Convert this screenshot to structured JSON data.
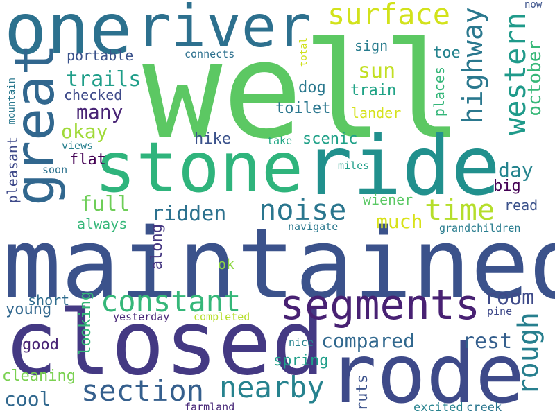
{
  "colors": {
    "background": "#ffffff",
    "palette": [
      "#440154",
      "#482878",
      "#3e4989",
      "#31688e",
      "#26828e",
      "#1f9e89",
      "#35b779",
      "#6ece58",
      "#b5de2b",
      "#fde725"
    ]
  },
  "words": [
    {
      "text": "well",
      "color": "#5cc863"
    },
    {
      "text": "stone",
      "color": "#2fb47c"
    },
    {
      "text": "ride",
      "color": "#21908d"
    },
    {
      "text": "maintained",
      "color": "#3b528b"
    },
    {
      "text": "closed",
      "color": "#443983"
    },
    {
      "text": "rode",
      "color": "#3e4a89"
    },
    {
      "text": "one",
      "color": "#2c718e"
    },
    {
      "text": "river",
      "color": "#2d708e"
    },
    {
      "text": "great",
      "color": "#31678e"
    },
    {
      "text": "segments",
      "color": "#482173"
    },
    {
      "text": "surface",
      "color": "#d2e21b"
    },
    {
      "text": "highway",
      "color": "#2a788e"
    },
    {
      "text": "western",
      "color": "#1f9a8a"
    },
    {
      "text": "october",
      "color": "#37b878"
    },
    {
      "text": "noise",
      "color": "#2a768e"
    },
    {
      "text": "time",
      "color": "#b5de2b"
    },
    {
      "text": "constant",
      "color": "#35b779"
    },
    {
      "text": "section",
      "color": "#355f8d"
    },
    {
      "text": "nearby",
      "color": "#26828e"
    },
    {
      "text": "rough",
      "color": "#277f8e"
    },
    {
      "text": "room",
      "color": "#3e4a89"
    },
    {
      "text": "rest",
      "color": "#355f8d"
    },
    {
      "text": "compared",
      "color": "#31688e"
    },
    {
      "text": "many",
      "color": "#482475"
    },
    {
      "text": "trails",
      "color": "#1f9e89"
    },
    {
      "text": "okay",
      "color": "#a0da39"
    },
    {
      "text": "sun",
      "color": "#c2df23"
    },
    {
      "text": "full",
      "color": "#6ece58"
    },
    {
      "text": "ridden",
      "color": "#2c718e"
    },
    {
      "text": "much",
      "color": "#d8e219"
    },
    {
      "text": "day",
      "color": "#25848e"
    },
    {
      "text": "sign",
      "color": "#287c8e"
    },
    {
      "text": "toe",
      "color": "#25838e"
    },
    {
      "text": "train",
      "color": "#20a386"
    },
    {
      "text": "dog",
      "color": "#2a788e"
    },
    {
      "text": "toilet",
      "color": "#2a768e"
    },
    {
      "text": "lander",
      "color": "#d5e21a"
    },
    {
      "text": "places",
      "color": "#34b679"
    },
    {
      "text": "portable",
      "color": "#3b528b"
    },
    {
      "text": "checked",
      "color": "#3e4a89"
    },
    {
      "text": "connects",
      "color": "#2d708e"
    },
    {
      "text": "total",
      "color": "#d0e11c"
    },
    {
      "text": "now",
      "color": "#3b528b"
    },
    {
      "text": "mountain",
      "color": "#2a788e"
    },
    {
      "text": "pleasant",
      "color": "#3e4989"
    },
    {
      "text": "hike",
      "color": "#3b528b"
    },
    {
      "text": "scenic",
      "color": "#1fa188"
    },
    {
      "text": "take",
      "color": "#22a785"
    },
    {
      "text": "views",
      "color": "#277f8e"
    },
    {
      "text": "flat",
      "color": "#440154"
    },
    {
      "text": "soon",
      "color": "#2c728e"
    },
    {
      "text": "miles",
      "color": "#1f9e89"
    },
    {
      "text": "big",
      "color": "#440154"
    },
    {
      "text": "wiener",
      "color": "#5ac864"
    },
    {
      "text": "read",
      "color": "#3b528b"
    },
    {
      "text": "always",
      "color": "#35b779"
    },
    {
      "text": "along",
      "color": "#453781"
    },
    {
      "text": "navigate",
      "color": "#2a788e"
    },
    {
      "text": "grandchildren",
      "color": "#287c8e"
    },
    {
      "text": "ok",
      "color": "#8fd744"
    },
    {
      "text": "short",
      "color": "#2f6c8e"
    },
    {
      "text": "young",
      "color": "#31678e"
    },
    {
      "text": "looking",
      "color": "#35b779"
    },
    {
      "text": "yesterday",
      "color": "#482777"
    },
    {
      "text": "completed",
      "color": "#b5de2b"
    },
    {
      "text": "pine",
      "color": "#3e4989"
    },
    {
      "text": "good",
      "color": "#482475"
    },
    {
      "text": "spring",
      "color": "#1f9e89"
    },
    {
      "text": "nice",
      "color": "#26828e"
    },
    {
      "text": "ruts",
      "color": "#3b528b"
    },
    {
      "text": "cleaning",
      "color": "#7ad151"
    },
    {
      "text": "cool",
      "color": "#31688e"
    },
    {
      "text": "farmland",
      "color": "#482878"
    },
    {
      "text": "excited",
      "color": "#26828e"
    },
    {
      "text": "creek",
      "color": "#2a768e"
    }
  ]
}
